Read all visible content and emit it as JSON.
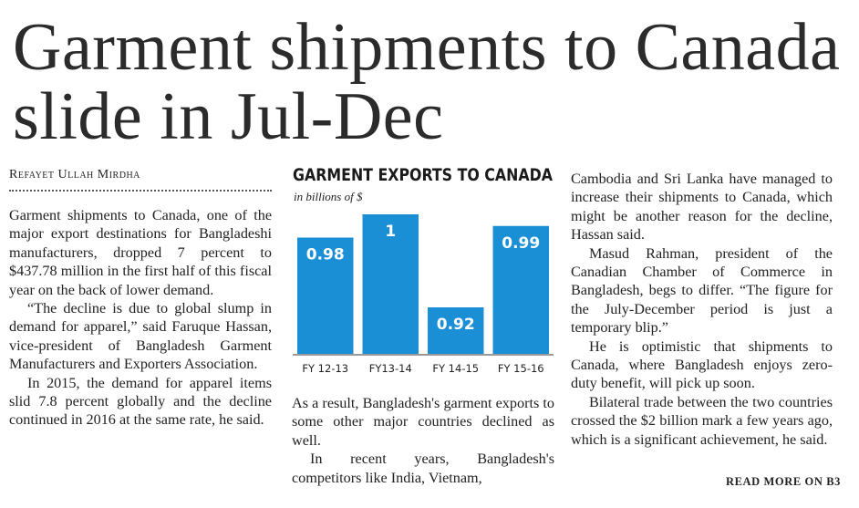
{
  "headline": "Garment shipments to Canada slide in Jul-Dec",
  "byline": "Refayet Ullah Mirdha",
  "columns": [
    [
      "Garment shipments to Canada, one of the major export destinations for Bangladeshi manufacturers, dropped 7 percent to $437.78 million in the first half of this fiscal year on the back of lower demand.",
      "“The decline is due to global slump in demand for apparel,” said Faruque Hassan, vice-president of Bangladesh Garment Manufacturers and Exporters Association.",
      "In 2015, the demand for apparel items slid 7.8 percent globally and the decline continued in 2016 at the same rate, he said."
    ],
    [
      "As a result, Bangladesh's garment exports to some other major countries declined as well.",
      "In recent years, Bangladesh's competitors like India, Vietnam,"
    ],
    [
      "Cambodia and Sri Lanka have managed to increase their shipments to Canada, which might be another reason for the decline, Hassan said.",
      "Masud Rahman, president of the Canadian Chamber of Commerce in Bangladesh, begs to differ. “The figure for the July-December period is just a temporary blip.”",
      "He is optimistic that shipments to Canada, where Bangladesh enjoys zero-duty benefit, will pick up soon.",
      "Bilateral trade between the two countries crossed the $2 billion mark a few years ago, which is a significant achievement, he said."
    ]
  ],
  "read_more": "READ MORE ON B3",
  "chart_data": {
    "type": "bar",
    "title": "GARMENT EXPORTS TO CANADA",
    "subtitle": "in billions of $",
    "categories": [
      "FY 12-13",
      "FY13-14",
      "FY 14-15",
      "FY 15-16"
    ],
    "values": [
      0.98,
      1,
      0.92,
      0.99
    ],
    "color": "#1b8fd6",
    "ylim": [
      0.88,
      1
    ]
  }
}
